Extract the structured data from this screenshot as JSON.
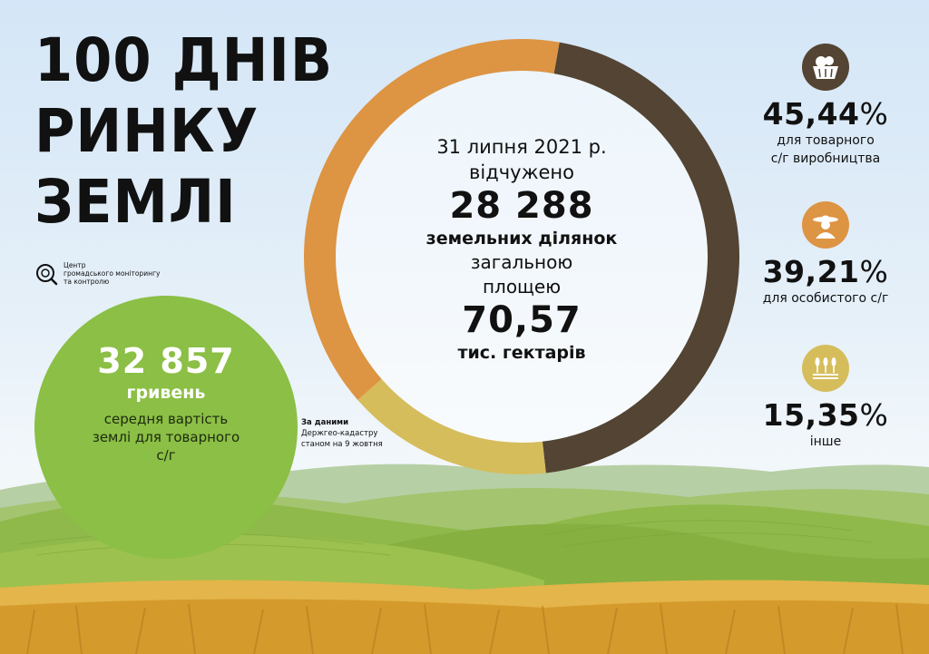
{
  "title_lines": [
    "100 ДНІВ",
    "РИНКУ",
    "ЗЕМЛІ"
  ],
  "organization": {
    "lines": [
      "Центр",
      "громадського моніторингу",
      "та контролю"
    ],
    "logo_icon": "magnifier-logo-icon"
  },
  "average_price": {
    "value": "32 857",
    "unit": "гривень",
    "description": "середня вартість землі для товарного с/г"
  },
  "source": {
    "bold": "За даними",
    "text": "Держгео-кадастру станом на 9 жовтня"
  },
  "summary": {
    "date": "31 липня 2021 р.",
    "verb": "відчужено",
    "parcels_value": "28 288",
    "parcels_label": "земельних ділянок",
    "area_prefix_1": "загальною",
    "area_prefix_2": "площею",
    "area_value": "70,57",
    "area_unit": "тис. гектарів"
  },
  "chart_data": {
    "type": "pie",
    "variant": "donut",
    "slices": [
      {
        "label": "для товарного с/г виробництва",
        "value": 45.44,
        "color": "#534433",
        "icon": "vegetables-basket-icon"
      },
      {
        "label": "інше",
        "value": 15.35,
        "color": "#d6bd5c",
        "icon": "wheat-field-icon"
      },
      {
        "label": "для особистого с/г",
        "value": 39.21,
        "color": "#dd9443",
        "icon": "farmer-icon"
      }
    ],
    "start_angle_deg": 10
  },
  "stats": [
    {
      "value": "45,44",
      "pct_sign": "%",
      "label_lines": [
        "для товарного",
        "с/г виробництва"
      ],
      "icon": "vegetables-basket-icon",
      "icon_color": "#534433"
    },
    {
      "value": "39,21",
      "pct_sign": "%",
      "label_lines": [
        "для особистого с/г"
      ],
      "icon": "farmer-icon",
      "icon_color": "#dd9443"
    },
    {
      "value": "15,35",
      "pct_sign": "%",
      "label_lines": [
        "інше"
      ],
      "icon": "wheat-field-icon",
      "icon_color": "#d6bd5c"
    }
  ]
}
